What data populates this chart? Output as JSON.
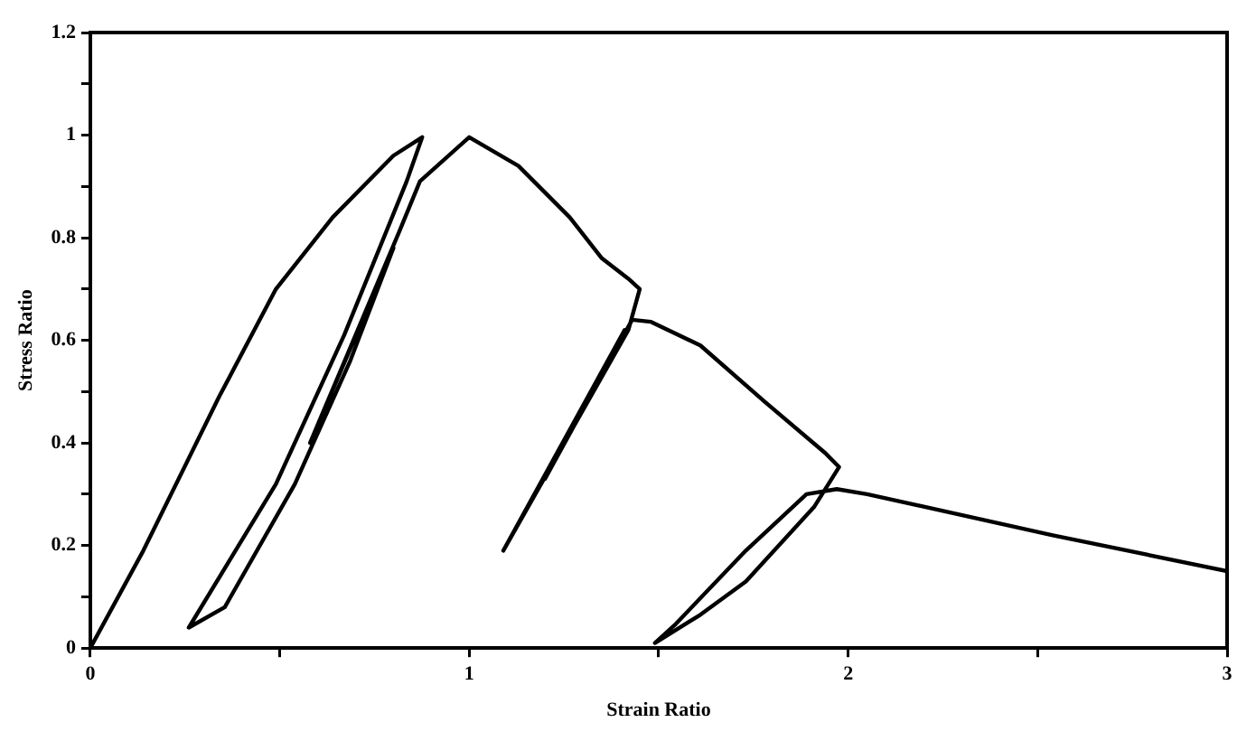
{
  "chart_data": {
    "type": "line",
    "xlabel": "Strain Ratio",
    "ylabel": "Stress Ratio",
    "x": [
      0,
      0.14,
      0.34,
      0.49,
      0.64,
      0.8,
      0.876,
      0.835,
      0.67,
      0.49,
      0.26,
      0.355,
      0.54,
      0.686,
      0.8,
      0.58,
      0.82,
      0.87,
      1.0,
      1.13,
      1.265,
      1.35,
      1.42,
      1.45,
      1.42,
      1.09,
      1.41,
      1.2,
      1.43,
      1.48,
      1.61,
      1.78,
      1.94,
      1.976,
      1.91,
      1.73,
      1.61,
      1.49,
      1.545,
      1.73,
      1.89,
      1.97,
      2.05,
      2.54,
      3.0
    ],
    "series": [
      {
        "color": "#000000",
        "values": [
          0,
          0.19,
          0.49,
          0.7,
          0.84,
          0.96,
          0.996,
          0.91,
          0.61,
          0.32,
          0.04,
          0.08,
          0.32,
          0.56,
          0.78,
          0.4,
          0.82,
          0.91,
          0.996,
          0.94,
          0.84,
          0.76,
          0.72,
          0.7,
          0.62,
          0.19,
          0.62,
          0.33,
          0.64,
          0.636,
          0.59,
          0.48,
          0.38,
          0.353,
          0.275,
          0.13,
          0.065,
          0.01,
          0.047,
          0.19,
          0.3,
          0.31,
          0.3,
          0.22,
          0.15
        ]
      }
    ],
    "xlim": [
      0,
      3
    ],
    "xticks": [
      0,
      {
        "value": 0.5,
        "label": null
      },
      1,
      {
        "value": 1.5,
        "label": null
      },
      2,
      {
        "value": 2.5,
        "label": null
      },
      3
    ],
    "ylim": [
      0,
      1.2
    ],
    "yticks": [
      0,
      {
        "value": 0.1,
        "label": null
      },
      0.2,
      {
        "value": 0.3,
        "label": null
      },
      0.4,
      {
        "value": 0.5,
        "label": null
      },
      0.6,
      {
        "value": 0.7,
        "label": null
      },
      0.8,
      {
        "value": 0.9,
        "label": null
      },
      1,
      {
        "value": 1.1,
        "label": null
      },
      1.2
    ],
    "grid": false,
    "legend": false,
    "marker": "none",
    "line_style": "solid"
  }
}
